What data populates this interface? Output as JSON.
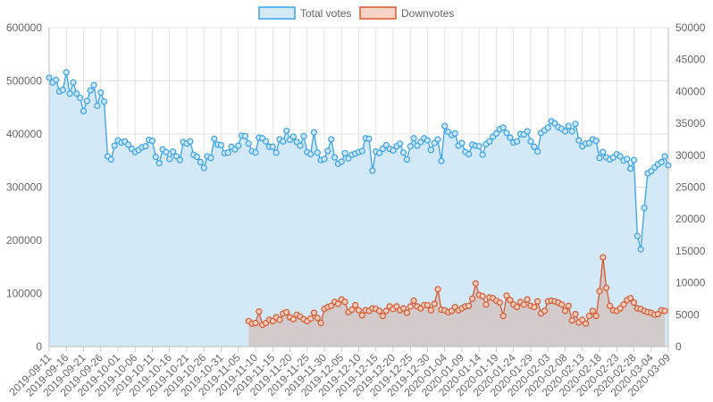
{
  "chart_data": {
    "type": "line",
    "title": "",
    "xlabel": "",
    "ylabel_left": "",
    "ylabel_right": "",
    "legend_position": "top-center",
    "grid": true,
    "x_start": "2019-09-11",
    "x_tick_labels": [
      "2019-09-11",
      "2019-09-16",
      "2019-09-21",
      "2019-09-26",
      "2019-10-01",
      "2019-10-06",
      "2019-10-11",
      "2019-10-16",
      "2019-10-21",
      "2019-10-26",
      "2019-10-31",
      "2019-11-05",
      "2019-11-10",
      "2019-11-15",
      "2019-11-20",
      "2019-11-25",
      "2019-11-30",
      "2019-12-05",
      "2019-12-10",
      "2019-12-15",
      "2019-12-20",
      "2019-12-25",
      "2019-12-30",
      "2020-01-04",
      "2020-01-09",
      "2020-01-14",
      "2020-01-19",
      "2020-01-24",
      "2020-01-29",
      "2020-02-03",
      "2020-02-08",
      "2020-02-13",
      "2020-02-18",
      "2020-02-23",
      "2020-02-28",
      "2020-03-04",
      "2020-03-09"
    ],
    "y_left": {
      "min": 0,
      "max": 600000,
      "ticks": [
        "0",
        "100000",
        "200000",
        "300000",
        "400000",
        "500000",
        "600000"
      ]
    },
    "y_right": {
      "min": 0,
      "max": 50000,
      "ticks": [
        "0",
        "5000",
        "10000",
        "15000",
        "20000",
        "25000",
        "30000",
        "35000",
        "40000",
        "45000",
        "50000"
      ]
    },
    "series": [
      {
        "name": "Total votes",
        "axis": "left",
        "line_color": "#36a2eb",
        "fill_color": "#d4e9f8",
        "start_date": "2019-09-11",
        "values": [
          506000,
          497000,
          502000,
          480000,
          483000,
          516000,
          476000,
          497000,
          476000,
          468000,
          443000,
          462000,
          482000,
          492000,
          453000,
          478000,
          461000,
          358000,
          352000,
          378000,
          388000,
          384000,
          386000,
          380000,
          372000,
          366000,
          370000,
          375000,
          377000,
          389000,
          387000,
          357000,
          345000,
          371000,
          366000,
          353000,
          367000,
          358000,
          351000,
          385000,
          382000,
          386000,
          361000,
          357000,
          347000,
          336000,
          358000,
          355000,
          391000,
          380000,
          379000,
          364000,
          365000,
          376000,
          371000,
          378000,
          397000,
          396000,
          382000,
          368000,
          365000,
          393000,
          392000,
          386000,
          376000,
          376000,
          365000,
          390000,
          386000,
          406000,
          389000,
          395000,
          385000,
          378000,
          396000,
          366000,
          362000,
          403000,
          365000,
          351000,
          353000,
          368000,
          390000,
          356000,
          344000,
          348000,
          364000,
          354000,
          361000,
          363000,
          366000,
          368000,
          392000,
          391000,
          331000,
          367000,
          364000,
          372000,
          379000,
          372000,
          369000,
          377000,
          382000,
          365000,
          352000,
          377000,
          392000,
          378000,
          385000,
          392000,
          388000,
          370000,
          383000,
          390000,
          349000,
          415000,
          404000,
          398000,
          401000,
          378000,
          383000,
          366000,
          362000,
          380000,
          378000,
          377000,
          361000,
          381000,
          386000,
          395000,
          401000,
          409000,
          412000,
          402000,
          393000,
          384000,
          386000,
          400000,
          399000,
          405000,
          386000,
          376000,
          367000,
          402000,
          407000,
          412000,
          424000,
          420000,
          413000,
          410000,
          405000,
          415000,
          405000,
          419000,
          388000,
          377000,
          382000,
          383000,
          390000,
          387000,
          355000,
          366000,
          356000,
          352000,
          356000,
          362000,
          358000,
          350000,
          353000,
          335000,
          351000,
          208000,
          183000,
          261000,
          326000,
          330000,
          337000,
          343000,
          347000,
          358000,
          341000
        ]
      },
      {
        "name": "Downvotes",
        "axis": "right",
        "line_color": "#d35a31",
        "fill_color": "rgba(211,90,49,0.22)",
        "start_date": "2019-11-08",
        "values": [
          4000,
          3600,
          3700,
          5500,
          3400,
          3700,
          4200,
          4000,
          4600,
          4200,
          5200,
          5400,
          4600,
          4300,
          5000,
          4700,
          4300,
          4000,
          4400,
          5300,
          4500,
          3700,
          5900,
          6200,
          6400,
          7000,
          6700,
          7400,
          7000,
          5400,
          5800,
          6500,
          5700,
          4900,
          5700,
          5600,
          6000,
          5900,
          5600,
          4800,
          5600,
          6300,
          5900,
          6300,
          5700,
          6000,
          5300,
          6300,
          7200,
          6300,
          6000,
          6500,
          6500,
          5700,
          6700,
          9000,
          5800,
          5700,
          5400,
          5600,
          6200,
          5700,
          6000,
          6300,
          6400,
          7500,
          9900,
          8100,
          7900,
          6600,
          7700,
          7600,
          7200,
          6900,
          4800,
          8000,
          7300,
          6600,
          6200,
          7000,
          6600,
          7400,
          6400,
          6200,
          7100,
          5200,
          5600,
          7100,
          7200,
          7100,
          6900,
          6600,
          5600,
          6400,
          4100,
          5100,
          3800,
          4200,
          3600,
          4800,
          5600,
          4800,
          8700,
          14000,
          9200,
          6400,
          5700,
          5600,
          6000,
          6600,
          7300,
          7600,
          6900,
          6000,
          5900,
          5600,
          5400,
          5300,
          5000,
          5100,
          5700,
          5600
        ]
      }
    ]
  }
}
